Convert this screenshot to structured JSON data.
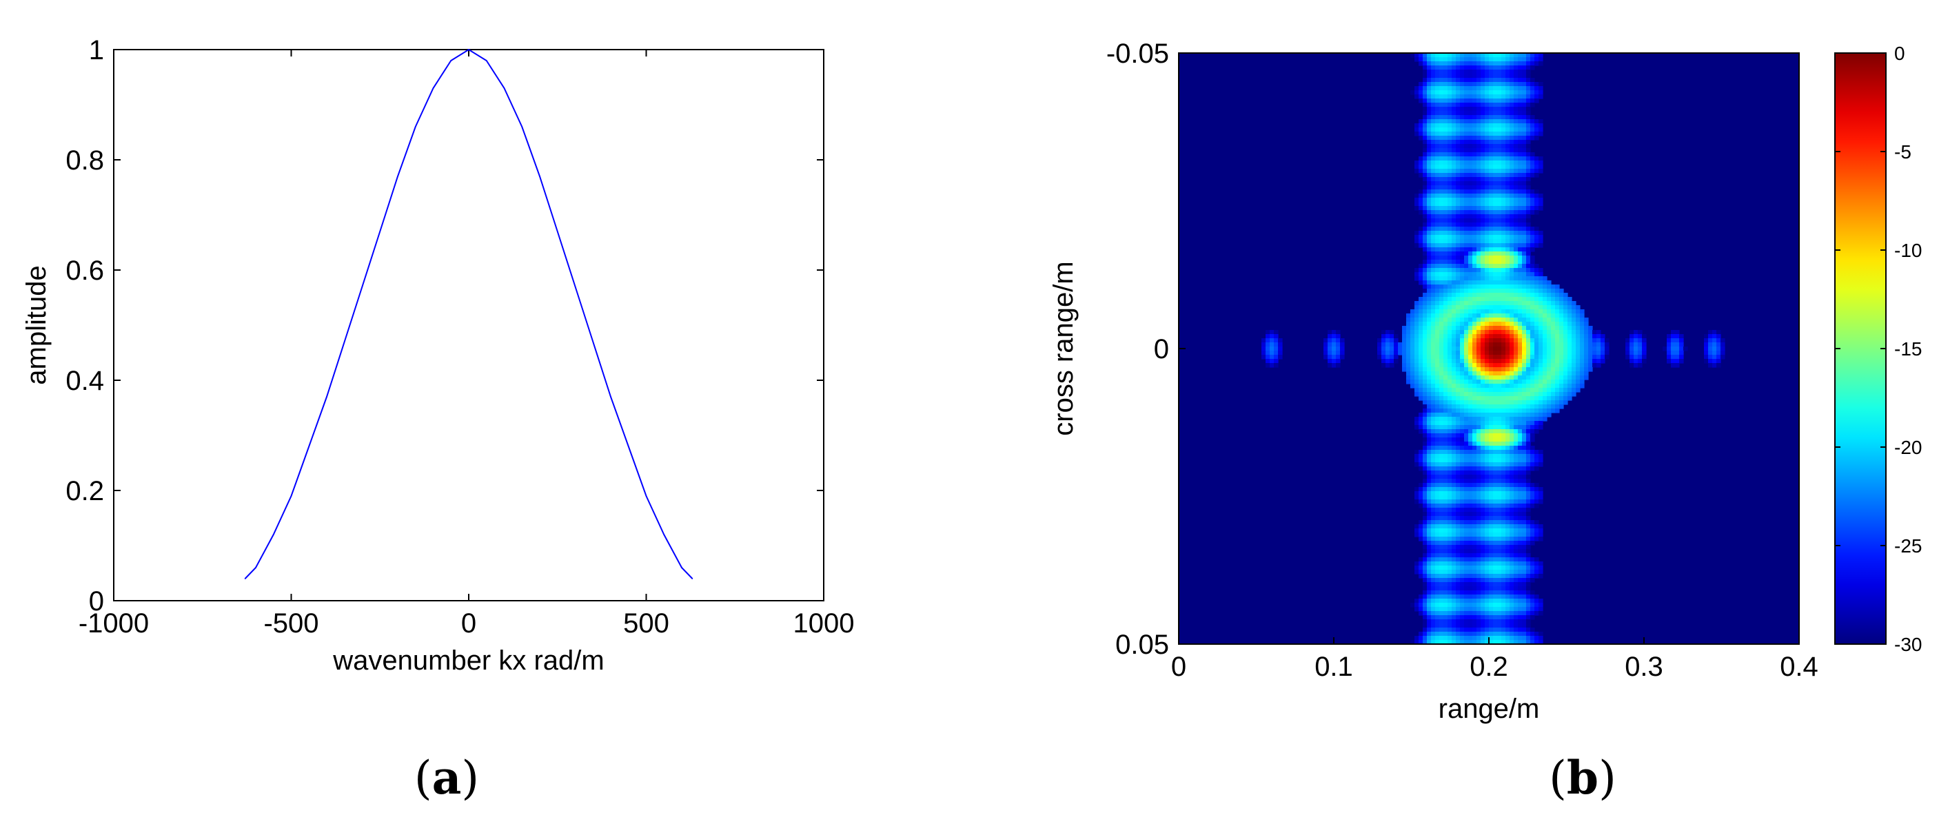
{
  "panel_labels": {
    "a": {
      "open": "(",
      "letter": "a",
      "close": ")"
    },
    "b": {
      "open": "(",
      "letter": "b",
      "close": ")"
    }
  },
  "colors": {
    "line": "#0000ff",
    "axis": "#000000",
    "background_low": "#00008f"
  },
  "chart_data": [
    {
      "type": "line",
      "panel": "a",
      "title": "",
      "xlabel": "wavenumber kx rad/m",
      "ylabel": "amplitude",
      "xlim": [
        -1000,
        1000
      ],
      "ylim": [
        0,
        1
      ],
      "x_ticks": [
        -1000,
        -500,
        0,
        500,
        1000
      ],
      "x_tick_labels": [
        "-1000",
        "-500",
        "0",
        "500",
        "1000"
      ],
      "y_ticks": [
        0,
        0.2,
        0.4,
        0.6,
        0.8,
        1
      ],
      "y_tick_labels": [
        "0",
        "0.2",
        "0.4",
        "0.6",
        "0.8",
        "1"
      ],
      "grid": false,
      "series": [
        {
          "x": [
            -630,
            -600,
            -550,
            -500,
            -450,
            -400,
            -350,
            -300,
            -250,
            -200,
            -150,
            -100,
            -50,
            0,
            50,
            100,
            150,
            200,
            250,
            300,
            350,
            400,
            450,
            500,
            550,
            600,
            630
          ],
          "y": [
            0.04,
            0.06,
            0.12,
            0.19,
            0.28,
            0.37,
            0.47,
            0.57,
            0.67,
            0.77,
            0.86,
            0.93,
            0.98,
            1.0,
            0.98,
            0.93,
            0.86,
            0.77,
            0.67,
            0.57,
            0.47,
            0.37,
            0.28,
            0.19,
            0.12,
            0.06,
            0.04
          ]
        }
      ]
    },
    {
      "type": "heatmap",
      "panel": "b",
      "title": "",
      "xlabel": "range/m",
      "ylabel": "cross range/m",
      "xlim": [
        0,
        0.4
      ],
      "ylim": [
        -0.05,
        0.05
      ],
      "y_reversed": true,
      "x_ticks": [
        0,
        0.1,
        0.2,
        0.3,
        0.4
      ],
      "x_tick_labels": [
        "0",
        "0.1",
        "0.2",
        "0.3",
        "0.4"
      ],
      "y_ticks": [
        -0.05,
        0,
        0.05
      ],
      "y_tick_labels": [
        "-0.05",
        "0",
        "0.05"
      ],
      "colorbar": {
        "colormap": "jet",
        "range": [
          -30,
          0
        ],
        "ticks": [
          0,
          -5,
          -10,
          -15,
          -20,
          -25,
          -30
        ],
        "tick_labels": [
          "0",
          "-5",
          "-10",
          "-15",
          "-20",
          "-25",
          "-30"
        ]
      },
      "features": {
        "peak": {
          "x": 0.205,
          "y": 0.0,
          "value_db": 0
        },
        "strip_x_range": [
          0.15,
          0.235
        ],
        "strip_value_db": -19,
        "side_lobes_y": [
          -0.015,
          0.015
        ],
        "side_lobe_value_db": -12,
        "range_sidelobes_x": [
          0.06,
          0.1,
          0.135,
          0.27,
          0.295,
          0.32,
          0.345
        ],
        "range_sidelobe_value_db": -23
      }
    }
  ]
}
